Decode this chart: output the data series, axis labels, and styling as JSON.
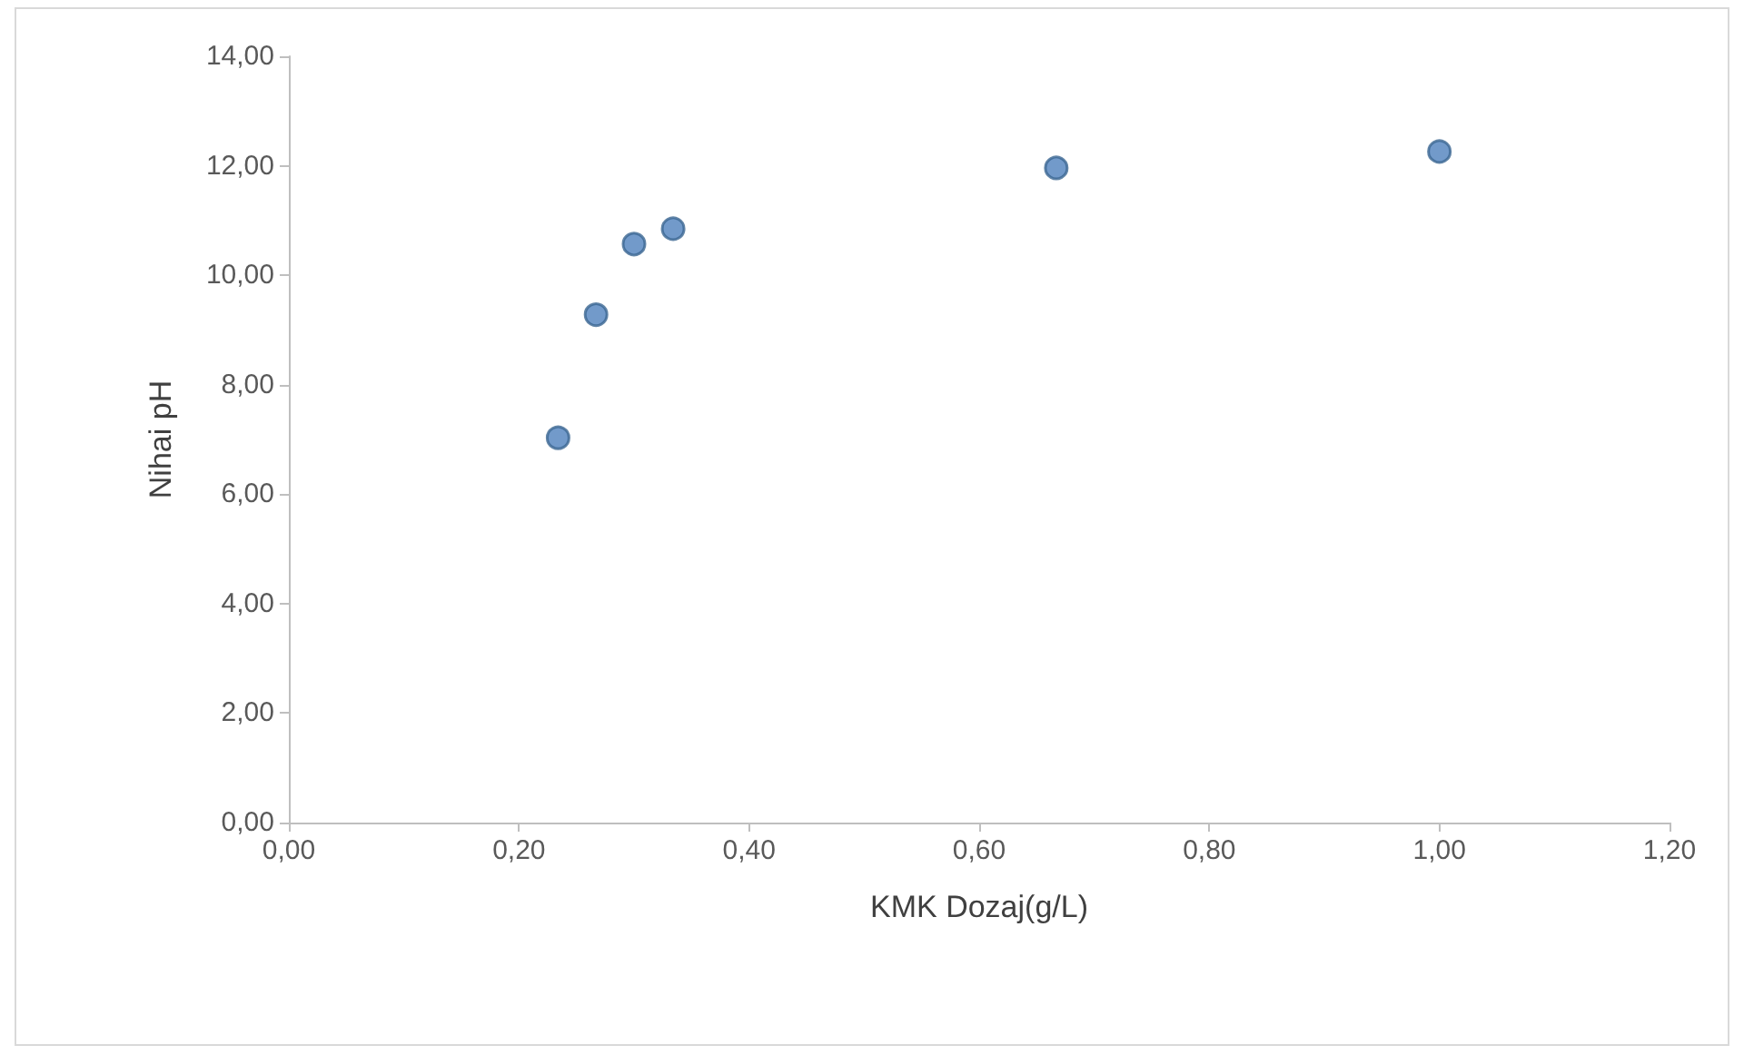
{
  "chart_data": {
    "type": "scatter",
    "xlabel": "KMK Dozaj(g/L)",
    "ylabel": "Nihai pH",
    "x": [
      0.234,
      0.267,
      0.3,
      0.334,
      0.667,
      1.0
    ],
    "series": [
      {
        "color": "#4f81bd",
        "values": [
          7.03,
          9.28,
          10.57,
          10.85,
          11.96,
          12.26
        ]
      }
    ],
    "xlim": [
      0,
      1.2
    ],
    "xticks": [
      {
        "value": 0,
        "label": "0,00"
      },
      {
        "value": 0.2,
        "label": "0,20"
      },
      {
        "value": 0.4,
        "label": "0,40"
      },
      {
        "value": 0.6,
        "label": "0,60"
      },
      {
        "value": 0.8,
        "label": "0,80"
      },
      {
        "value": 1,
        "label": "1,00"
      },
      {
        "value": 1.2,
        "label": "1,20"
      }
    ],
    "ylim": [
      0,
      14
    ],
    "yticks": [
      {
        "value": 0,
        "label": "0,00"
      },
      {
        "value": 2,
        "label": "2,00"
      },
      {
        "value": 4,
        "label": "4,00"
      },
      {
        "value": 6,
        "label": "6,00"
      },
      {
        "value": 8,
        "label": "8,00"
      },
      {
        "value": 10,
        "label": "10,00"
      },
      {
        "value": 12,
        "label": "12,00"
      },
      {
        "value": 14,
        "label": "14,00"
      }
    ],
    "grid": false,
    "legend": false,
    "marker": "circle"
  }
}
